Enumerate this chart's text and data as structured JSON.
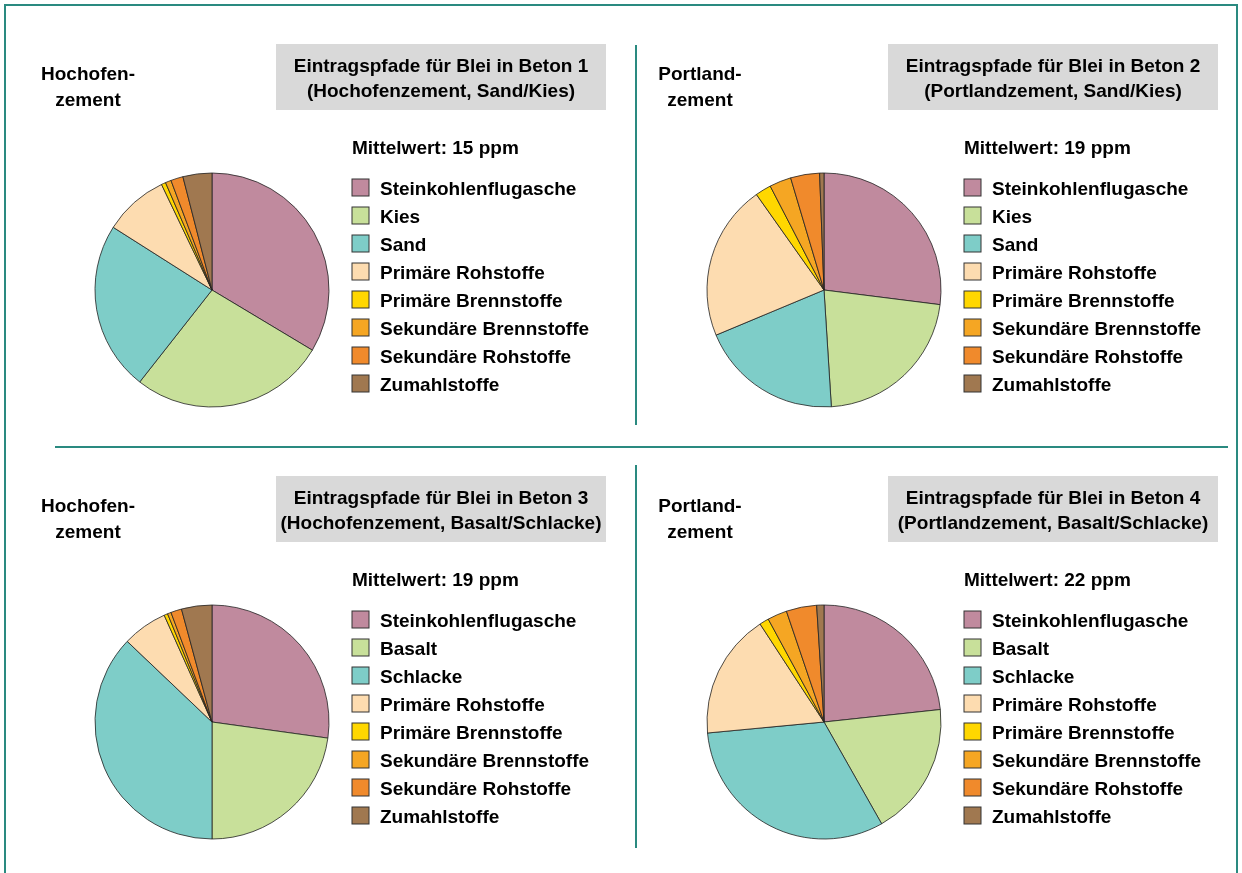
{
  "chart_data": [
    {
      "type": "pie",
      "title": "Eintragspfade für Blei in Beton 1\n(Hochofenzement, Sand/Kies)",
      "subtitle": "Mittelwert: 15  ppm",
      "annotations": [
        "Hochofen-\nzement"
      ],
      "legend": "right",
      "categories": [
        "Steinkohlenflugasche",
        "Kies",
        "Sand",
        "Primäre Rohstoffe",
        "Primäre Brennstoffe",
        "Sekundäre Brennstoffe",
        "Sekundäre Rohstoffe",
        "Zumahlstoffe"
      ],
      "values": [
        33.6,
        27,
        23.4,
        8.9,
        0.6,
        0.8,
        1.7,
        4.0
      ],
      "colors": [
        "#c08a9e",
        "#c8e09a",
        "#7ecdc8",
        "#fddcb0",
        "#ffd700",
        "#f5a623",
        "#f08a2c",
        "#a07850"
      ]
    },
    {
      "type": "pie",
      "title": "Eintragspfade für Blei in Beton 2\n(Portlandzement, Sand/Kies)",
      "subtitle": "Mittelwert: 19 ppm",
      "annotations": [
        "Portland-\nzement"
      ],
      "legend": "right",
      "categories": [
        "Steinkohlenflugasche",
        "Kies",
        "Sand",
        "Primäre Rohstoffe",
        "Primäre Brennstoffe",
        "Sekundäre Brennstoffe",
        "Sekundäre Rohstoffe",
        "Zumahlstoffe"
      ],
      "values": [
        27,
        22,
        19.7,
        21.5,
        2.2,
        3,
        4,
        0.6
      ],
      "colors": [
        "#c08a9e",
        "#c8e09a",
        "#7ecdc8",
        "#fddcb0",
        "#ffd700",
        "#f5a623",
        "#f08a2c",
        "#a07850"
      ]
    },
    {
      "type": "pie",
      "title": "Eintragspfade für Blei in Beton 3\n(Hochofenzement, Basalt/Schlacke)",
      "subtitle": "Mittelwert: 19 ppm",
      "annotations": [
        "Hochofen-\nzement"
      ],
      "legend": "right",
      "categories": [
        "Steinkohlenflugasche",
        "Basalt",
        "Schlacke",
        "Primäre Rohstoffe",
        "Primäre Brennstoffe",
        "Sekundäre Brennstoffe",
        "Sekundäre Rohstoffe",
        "Zumahlstoffe"
      ],
      "values": [
        27.2,
        22.8,
        37.1,
        6.2,
        0.5,
        0.5,
        1.5,
        4.2
      ],
      "colors": [
        "#c08a9e",
        "#c8e09a",
        "#7ecdc8",
        "#fddcb0",
        "#ffd700",
        "#f5a623",
        "#f08a2c",
        "#a07850"
      ]
    },
    {
      "type": "pie",
      "title": "Eintragspfade für Blei in Beton 4\n(Portlandzement, Basalt/Schlacke)",
      "subtitle": "Mittelwert: 22 ppm",
      "annotations": [
        "Portland-\nzement"
      ],
      "legend": "right",
      "categories": [
        "Steinkohlenflugasche",
        "Basalt",
        "Schlacke",
        "Primäre Rohstoffe",
        "Primäre Brennstoffe",
        "Sekundäre Brennstoffe",
        "Sekundäre Rohstoffe",
        "Zumahlstoffe"
      ],
      "values": [
        23.3,
        18.5,
        31.7,
        17.3,
        1.3,
        2.7,
        4.2,
        1.0
      ],
      "colors": [
        "#c08a9e",
        "#c8e09a",
        "#7ecdc8",
        "#fddcb0",
        "#ffd700",
        "#f5a623",
        "#f08a2c",
        "#a07850"
      ]
    }
  ]
}
